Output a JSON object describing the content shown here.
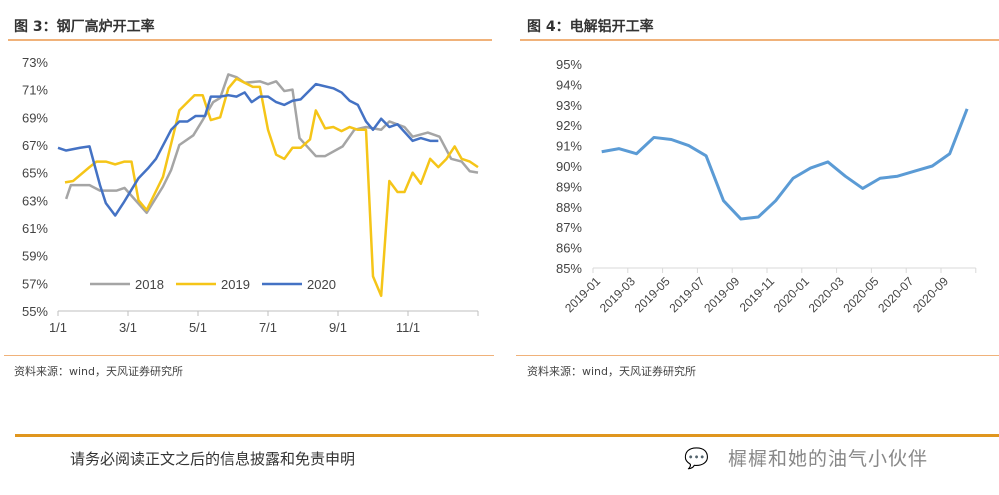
{
  "left_panel": {
    "title": "图 3：钢厂高炉开工率",
    "source": "资料来源：wind，天风证券研究所"
  },
  "right_panel": {
    "title": "图 4：电解铝开工率",
    "source": "资料来源：wind，天风证券研究所"
  },
  "footer": {
    "disclaimer": "请务必阅读正文之后的信息披露和免责申明",
    "watermark": "樨樨和她的油气小伙伴",
    "watermark_icon": "wechat-icon",
    "rule_color": "#e0961e"
  },
  "chart_data": [
    {
      "type": "line",
      "title": "",
      "x_ticks": [
        "1/1",
        "3/1",
        "5/1",
        "7/1",
        "9/1",
        "11/1"
      ],
      "y_ticks": [
        "55%",
        "57%",
        "59%",
        "61%",
        "63%",
        "65%",
        "67%",
        "69%",
        "71%",
        "73%"
      ],
      "ylim": [
        55,
        73
      ],
      "legend": "bottom-center",
      "series": [
        {
          "name": "2018",
          "color": "#a5a5a5",
          "x": [
            "1/8",
            "1/12",
            "1/28",
            "2/7",
            "2/21",
            "2/28",
            "3/17",
            "4/1",
            "4/8",
            "4/15",
            "4/27",
            "5/5",
            "5/14",
            "5/20",
            "5/27",
            "6/4",
            "6/11",
            "6/24",
            "7/1",
            "7/8",
            "7/15",
            "7/22",
            "7/28",
            "8/12",
            "8/20",
            "9/5",
            "9/15",
            "9/25",
            "10/8",
            "10/15",
            "10/28",
            "11/5",
            "11/18",
            "11/28",
            "12/8",
            "12/17",
            "12/24",
            "12/31"
          ],
          "values": [
            63.1,
            64.1,
            64.1,
            63.7,
            63.7,
            63.9,
            62.1,
            64.0,
            65.2,
            67.0,
            67.7,
            68.8,
            70.1,
            70.4,
            72.1,
            71.9,
            71.5,
            71.6,
            71.4,
            71.6,
            70.9,
            71.0,
            67.5,
            66.2,
            66.2,
            66.9,
            68.1,
            68.3,
            68.1,
            68.7,
            68.3,
            67.6,
            67.9,
            67.6,
            66.0,
            65.8,
            65.1,
            65.0
          ]
        },
        {
          "name": "2019",
          "color": "#f5c518",
          "x": [
            "1/7",
            "1/14",
            "1/28",
            "2/4",
            "2/12",
            "2/20",
            "2/28",
            "3/4",
            "3/10",
            "3/17",
            "4/1",
            "4/15",
            "4/28",
            "5/5",
            "5/12",
            "5/20",
            "5/27",
            "6/4",
            "6/11",
            "6/18",
            "6/24",
            "7/1",
            "7/8",
            "7/15",
            "7/22",
            "7/29",
            "8/7",
            "8/12",
            "8/20",
            "8/27",
            "9/4",
            "9/11",
            "9/18",
            "9/25",
            "10/1",
            "10/8",
            "10/15",
            "10/22",
            "10/28",
            "11/5",
            "11/12",
            "11/20",
            "11/27",
            "12/4",
            "12/11",
            "12/17",
            "12/24",
            "12/31"
          ],
          "values": [
            64.3,
            64.4,
            65.4,
            65.8,
            65.8,
            65.6,
            65.8,
            65.8,
            63.0,
            62.3,
            64.7,
            69.5,
            70.6,
            70.6,
            68.8,
            69.0,
            71.1,
            71.8,
            71.5,
            71.2,
            71.2,
            68.1,
            66.3,
            66.0,
            66.8,
            66.8,
            67.4,
            69.5,
            68.2,
            68.3,
            68.0,
            68.3,
            68.1,
            68.1,
            57.5,
            56.1,
            64.4,
            63.6,
            63.6,
            65.0,
            64.2,
            66.0,
            65.4,
            66.0,
            66.9,
            66.0,
            65.8,
            65.4
          ]
        },
        {
          "name": "2020",
          "color": "#4472c4",
          "x": [
            "1/1",
            "1/8",
            "1/20",
            "1/28",
            "2/7",
            "2/12",
            "2/20",
            "2/27",
            "3/10",
            "3/18",
            "3/25",
            "4/8",
            "4/15",
            "4/22",
            "4/29",
            "5/7",
            "5/12",
            "5/20",
            "5/27",
            "6/4",
            "6/11",
            "6/17",
            "6/24",
            "7/1",
            "7/8",
            "7/15",
            "7/22",
            "7/29",
            "8/12",
            "8/27",
            "9/4",
            "9/11",
            "9/18",
            "9/25",
            "10/1",
            "10/8",
            "10/15",
            "10/22",
            "11/5",
            "11/12",
            "11/20",
            "11/27"
          ],
          "values": [
            66.8,
            66.6,
            66.8,
            66.9,
            64.1,
            62.8,
            61.9,
            62.8,
            64.6,
            65.3,
            66.0,
            68.1,
            68.7,
            68.7,
            69.1,
            69.1,
            70.5,
            70.5,
            70.6,
            70.5,
            70.8,
            70.1,
            70.5,
            70.5,
            70.1,
            69.9,
            70.2,
            70.3,
            71.4,
            71.1,
            70.8,
            70.2,
            69.9,
            68.7,
            68.1,
            68.9,
            68.3,
            68.5,
            67.3,
            67.5,
            67.3,
            67.3
          ]
        }
      ]
    },
    {
      "type": "line",
      "title": "",
      "categories": [
        "2019-01",
        "2019-02",
        "2019-03",
        "2019-04",
        "2019-05",
        "2019-06",
        "2019-07",
        "2019-08",
        "2019-09",
        "2019-10",
        "2019-11",
        "2019-12",
        "2020-01",
        "2020-02",
        "2020-03",
        "2020-04",
        "2020-05",
        "2020-06",
        "2020-07",
        "2020-08",
        "2020-09",
        "2020-10"
      ],
      "x_tick_labels": [
        "2019-01",
        "2019-03",
        "2019-05",
        "2019-07",
        "2019-09",
        "2019-11",
        "2020-01",
        "2020-03",
        "2020-05",
        "2020-07",
        "2020-09"
      ],
      "y_ticks": [
        "85%",
        "86%",
        "87%",
        "88%",
        "89%",
        "90%",
        "91%",
        "92%",
        "93%",
        "94%",
        "95%"
      ],
      "ylim": [
        85,
        95
      ],
      "color": "#5b9bd5",
      "values": [
        90.7,
        90.85,
        90.6,
        91.4,
        91.3,
        91.0,
        90.5,
        88.3,
        87.4,
        87.5,
        88.3,
        89.4,
        89.9,
        90.2,
        89.5,
        88.9,
        89.4,
        89.5,
        89.75,
        90.0,
        90.6,
        92.8
      ]
    }
  ]
}
